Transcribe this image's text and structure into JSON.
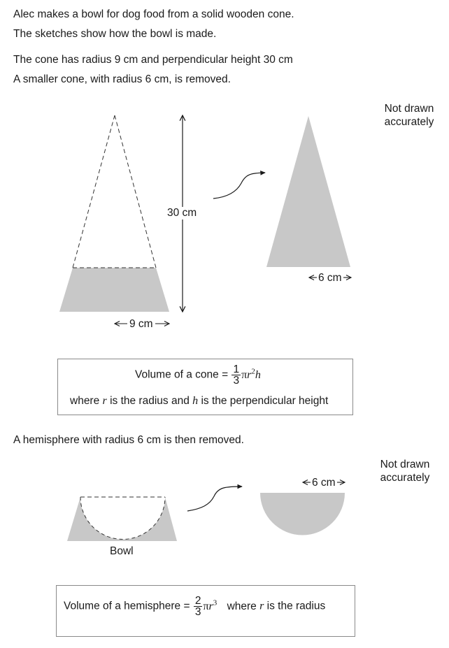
{
  "intro": {
    "line1": "Alec makes a bowl for dog food from a solid wooden cone.",
    "line2": "The sketches show how the bowl is made.",
    "line3": "The cone has radius 9 cm and perpendicular height 30 cm",
    "line4": "A smaller cone, with radius 6 cm, is removed."
  },
  "note_top": {
    "line1": "Not drawn",
    "line2": "accurately"
  },
  "figure1": {
    "height_label": "30 cm",
    "base_label": "9 cm",
    "small_cone_label": "6 cm",
    "fill_color": "#c8c8c8"
  },
  "cone_formula": {
    "prefix": "Volume of a cone =",
    "fraction_num": "1",
    "fraction_den": "3",
    "expression_pi": "π",
    "expression_r": "r",
    "expression_exp": "2",
    "expression_h": "h",
    "where_text_1": "where",
    "where_r": "r",
    "where_text_2": "is the radius and",
    "where_h": "h",
    "where_text_3": "is the perpendicular height"
  },
  "hemisphere_text": "A hemisphere with radius 6 cm is then removed.",
  "note_bottom": {
    "line1": "Not drawn",
    "line2": "accurately"
  },
  "figure2": {
    "bowl_label": "Bowl",
    "hemisphere_label": "6 cm"
  },
  "hemisphere_formula": {
    "prefix": "Volume of a hemisphere =",
    "fraction_num": "2",
    "fraction_den": "3",
    "expression_pi": "π",
    "expression_r": "r",
    "expression_exp": "3",
    "suffix_1": "where",
    "suffix_r": "r",
    "suffix_2": "is the radius"
  }
}
